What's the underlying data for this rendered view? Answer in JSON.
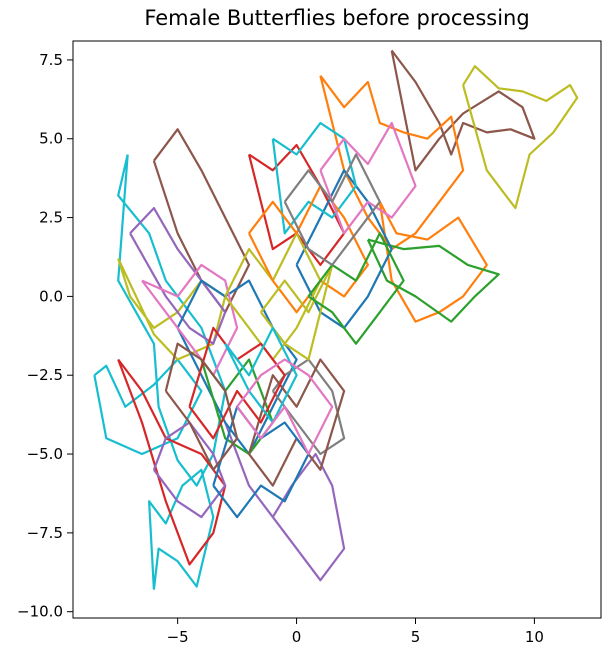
{
  "chart_data": {
    "type": "line",
    "title": "Female Butterflies before processing",
    "xlabel": "",
    "ylabel": "",
    "xlim": [
      -9.4,
      12.8
    ],
    "ylim": [
      -10.2,
      8.1
    ],
    "xticks": [
      -5,
      0,
      5,
      10
    ],
    "xtick_labels": [
      "−5",
      "0",
      "5",
      "10"
    ],
    "yticks": [
      7.5,
      5.0,
      2.5,
      0.0,
      -2.5,
      -5.0,
      -7.5,
      -10.0
    ],
    "ytick_labels": [
      "7.5",
      "5.0",
      "2.5",
      "0.0",
      "−2.5",
      "−5.0",
      "−7.5",
      "−10.0"
    ],
    "grid": false,
    "legend": "none",
    "palette": [
      "#1f77b4",
      "#ff7f0e",
      "#2ca02c",
      "#d62728",
      "#9467bd",
      "#8c564b",
      "#e377c2",
      "#7f7f7f",
      "#bcbd22",
      "#17becf"
    ],
    "series": [
      {
        "color": "#17becf",
        "x": [
          -7.1,
          -7.5,
          -6.2,
          -5.5,
          -4.0,
          -3.0,
          -3.5,
          -4.2,
          -5.0,
          -5.8,
          -6.0,
          -7.5,
          -7.1
        ],
        "y": [
          4.5,
          3.2,
          2.0,
          0.5,
          -1.0,
          -3.0,
          -5.0,
          -6.0,
          -5.2,
          -3.5,
          -1.5,
          0.5,
          4.5
        ]
      },
      {
        "color": "#17becf",
        "x": [
          -6.0,
          -5.8,
          -5.0,
          -4.2,
          -3.5,
          -4.0,
          -4.8,
          -5.5,
          -6.2,
          -6.0
        ],
        "y": [
          -9.3,
          -8.0,
          -8.4,
          -9.2,
          -7.0,
          -5.5,
          -6.0,
          -7.2,
          -6.5,
          -9.3
        ]
      },
      {
        "color": "#17becf",
        "x": [
          -8.5,
          -8.0,
          -6.5,
          -5.0,
          -4.0,
          -5.0,
          -6.0,
          -7.2,
          -8.0,
          -8.5
        ],
        "y": [
          -2.5,
          -4.5,
          -5.0,
          -4.5,
          -3.0,
          -2.0,
          -2.8,
          -3.5,
          -2.2,
          -2.5
        ]
      },
      {
        "color": "#8c564b",
        "x": [
          -6.0,
          -5.0,
          -4.0,
          -3.0,
          -2.0,
          -3.0,
          -4.0,
          -5.0,
          -6.0
        ],
        "y": [
          4.3,
          5.3,
          4.0,
          2.5,
          1.0,
          -0.5,
          0.5,
          2.0,
          4.3
        ]
      },
      {
        "color": "#8c564b",
        "x": [
          4.0,
          5.0,
          6.0,
          6.5,
          7.0,
          8.0,
          9.0,
          10.0,
          9.5,
          8.5,
          7.0,
          6.0,
          5.0,
          4.0
        ],
        "y": [
          7.8,
          6.8,
          5.5,
          4.5,
          5.5,
          5.2,
          5.3,
          5.0,
          6.0,
          6.5,
          5.8,
          5.0,
          4.0,
          7.8
        ]
      },
      {
        "color": "#bcbd22",
        "x": [
          7.0,
          7.5,
          8.5,
          9.5,
          10.5,
          11.5,
          11.8,
          10.8,
          9.8,
          9.2,
          8.0,
          7.0
        ],
        "y": [
          6.7,
          7.3,
          6.6,
          6.5,
          6.2,
          6.7,
          6.3,
          5.2,
          4.5,
          2.8,
          4.0,
          6.7
        ]
      },
      {
        "color": "#bcbd22",
        "x": [
          -7.5,
          -7.0,
          -6.0,
          -5.0,
          -4.0,
          -3.0,
          -3.5,
          -5.0,
          -6.0,
          -7.5
        ],
        "y": [
          1.2,
          0.0,
          -1.0,
          -0.5,
          0.5,
          0.0,
          -1.5,
          -2.0,
          -1.2,
          1.2
        ]
      },
      {
        "color": "#ff7f0e",
        "x": [
          1.0,
          2.0,
          3.0,
          3.5,
          4.5,
          5.5,
          6.5,
          7.0,
          6.0,
          5.0,
          4.0,
          3.0,
          2.0,
          1.0
        ],
        "y": [
          7.0,
          6.0,
          6.8,
          5.5,
          5.2,
          5.0,
          5.7,
          4.0,
          3.0,
          2.0,
          1.5,
          2.5,
          4.0,
          7.0
        ]
      },
      {
        "color": "#ff7f0e",
        "x": [
          3.5,
          4.2,
          5.5,
          6.8,
          8.0,
          7.0,
          6.0,
          5.0,
          4.0,
          3.5
        ],
        "y": [
          3.0,
          2.0,
          1.8,
          2.5,
          1.0,
          0.0,
          -0.5,
          -0.8,
          0.5,
          3.0
        ]
      },
      {
        "color": "#2ca02c",
        "x": [
          3.0,
          4.5,
          6.0,
          7.2,
          8.5,
          7.5,
          6.5,
          5.0,
          3.8,
          3.0
        ],
        "y": [
          1.8,
          1.5,
          1.6,
          1.0,
          0.7,
          0.0,
          -0.8,
          0.0,
          0.5,
          1.8
        ]
      },
      {
        "color": "#9467bd",
        "x": [
          -3.0,
          -2.0,
          -1.0,
          0.0,
          1.0,
          2.0,
          1.5,
          0.8,
          -0.2,
          -1.0,
          -2.0,
          -3.0
        ],
        "y": [
          -4.0,
          -6.0,
          -7.0,
          -8.0,
          -9.0,
          -8.0,
          -6.0,
          -5.0,
          -6.0,
          -7.0,
          -6.0,
          -4.0
        ]
      },
      {
        "color": "#9467bd",
        "x": [
          -7.0,
          -6.0,
          -5.0,
          -4.0,
          -3.0,
          -3.5,
          -4.5,
          -5.5,
          -7.0
        ],
        "y": [
          2.0,
          2.8,
          1.5,
          0.5,
          -0.5,
          -1.5,
          -1.0,
          0.0,
          2.0
        ]
      },
      {
        "color": "#d62728",
        "x": [
          -7.5,
          -6.5,
          -5.5,
          -4.0,
          -3.0,
          -3.5,
          -4.5,
          -5.5,
          -6.5,
          -7.5
        ],
        "y": [
          -2.0,
          -3.0,
          -4.5,
          -5.0,
          -6.0,
          -7.5,
          -8.5,
          -6.5,
          -4.0,
          -2.0
        ]
      },
      {
        "color": "#d62728",
        "x": [
          -2.0,
          -1.0,
          0.0,
          1.0,
          2.0,
          1.0,
          0.0,
          -1.0,
          -2.0
        ],
        "y": [
          4.5,
          4.0,
          4.8,
          3.5,
          2.0,
          1.0,
          2.0,
          1.5,
          4.5
        ]
      },
      {
        "color": "#1f77b4",
        "x": [
          -5.0,
          -4.0,
          -3.0,
          -2.0,
          -1.0,
          0.0,
          -1.0,
          -2.0,
          -3.0,
          -4.0,
          -5.0
        ],
        "y": [
          -1.0,
          -2.5,
          -4.0,
          -5.0,
          -3.5,
          -2.0,
          -1.0,
          0.5,
          0.0,
          0.5,
          -1.0
        ]
      },
      {
        "color": "#1f77b4",
        "x": [
          0.0,
          1.0,
          2.0,
          3.0,
          4.0,
          3.0,
          2.0,
          1.0,
          0.0
        ],
        "y": [
          1.0,
          2.5,
          4.0,
          3.0,
          1.5,
          0.0,
          -1.0,
          -0.5,
          1.0
        ]
      },
      {
        "color": "#e377c2",
        "x": [
          -6.5,
          -5.5,
          -4.5,
          -3.5,
          -2.5,
          -3.0,
          -4.0,
          -5.0,
          -6.5
        ],
        "y": [
          0.5,
          -0.5,
          -1.5,
          -2.5,
          -1.0,
          0.5,
          1.0,
          0.0,
          0.5
        ]
      },
      {
        "color": "#7f7f7f",
        "x": [
          -1.0,
          0.0,
          1.0,
          2.0,
          1.5,
          0.5,
          -0.5,
          -1.0
        ],
        "y": [
          -3.0,
          -4.0,
          -5.0,
          -4.5,
          -3.0,
          -2.0,
          -2.5,
          -3.0
        ]
      },
      {
        "color": "#bcbd22",
        "x": [
          -3.0,
          -2.0,
          -1.0,
          0.0,
          1.0,
          0.0,
          -1.0,
          -2.0,
          -3.0
        ],
        "y": [
          0.0,
          1.5,
          0.5,
          2.0,
          0.5,
          -1.0,
          -2.0,
          -1.0,
          0.0
        ]
      },
      {
        "color": "#17becf",
        "x": [
          -1.0,
          0.0,
          1.0,
          2.0,
          2.5,
          1.5,
          0.5,
          -0.5,
          -1.0
        ],
        "y": [
          5.0,
          4.5,
          5.5,
          5.0,
          3.5,
          2.5,
          3.0,
          2.0,
          5.0
        ]
      },
      {
        "color": "#2ca02c",
        "x": [
          -4.0,
          -3.0,
          -2.0,
          -1.0,
          -2.0,
          -3.0,
          -4.0
        ],
        "y": [
          -2.0,
          -3.0,
          -2.0,
          -4.0,
          -5.0,
          -4.5,
          -2.0
        ]
      },
      {
        "color": "#8c564b",
        "x": [
          -2.0,
          -1.0,
          0.0,
          1.0,
          2.0,
          1.0,
          0.0,
          -1.0,
          -2.0
        ],
        "y": [
          -5.0,
          -6.0,
          -4.5,
          -5.5,
          -3.0,
          -2.0,
          -3.5,
          -2.5,
          -5.0
        ]
      },
      {
        "color": "#ff7f0e",
        "x": [
          -2.0,
          -1.0,
          0.0,
          1.0,
          2.0,
          3.0,
          2.0,
          1.0,
          0.0,
          -1.0,
          -2.0
        ],
        "y": [
          2.0,
          3.0,
          2.0,
          3.5,
          2.5,
          1.0,
          0.0,
          0.5,
          -0.5,
          0.5,
          2.0
        ]
      },
      {
        "color": "#9467bd",
        "x": [
          -6.0,
          -5.0,
          -4.0,
          -3.0,
          -3.5,
          -4.5,
          -5.5,
          -6.0
        ],
        "y": [
          -5.5,
          -6.5,
          -7.0,
          -6.0,
          -5.0,
          -4.0,
          -4.5,
          -5.5
        ]
      },
      {
        "color": "#e377c2",
        "x": [
          1.0,
          2.0,
          3.0,
          4.0,
          5.0,
          4.0,
          3.0,
          2.0,
          1.0
        ],
        "y": [
          4.0,
          5.0,
          4.2,
          5.5,
          3.5,
          2.5,
          3.0,
          2.0,
          4.0
        ]
      },
      {
        "color": "#d62728",
        "x": [
          -4.5,
          -3.5,
          -2.5,
          -1.5,
          -0.5,
          -1.5,
          -2.5,
          -3.5,
          -4.5
        ],
        "y": [
          -3.5,
          -4.5,
          -3.0,
          -4.0,
          -2.5,
          -1.5,
          -2.0,
          -1.0,
          -3.5
        ]
      },
      {
        "color": "#1f77b4",
        "x": [
          -3.5,
          -2.5,
          -1.5,
          -0.5,
          0.5,
          -0.5,
          -1.5,
          -2.5,
          -3.5
        ],
        "y": [
          -6.0,
          -7.0,
          -6.0,
          -6.5,
          -5.0,
          -4.0,
          -4.5,
          -3.5,
          -6.0
        ]
      },
      {
        "color": "#bcbd22",
        "x": [
          -1.5,
          -0.5,
          0.5,
          1.5,
          0.5,
          -0.5,
          -1.5
        ],
        "y": [
          -0.5,
          0.5,
          -0.5,
          1.0,
          -2.0,
          -1.5,
          -0.5
        ]
      },
      {
        "color": "#8c564b",
        "x": [
          -5.5,
          -4.5,
          -3.5,
          -2.5,
          -3.0,
          -4.0,
          -5.0,
          -5.5
        ],
        "y": [
          -3.0,
          -4.0,
          -5.5,
          -4.5,
          -3.0,
          -2.0,
          -1.5,
          -3.0
        ]
      },
      {
        "color": "#2ca02c",
        "x": [
          0.5,
          1.5,
          2.5,
          3.5,
          4.5,
          3.5,
          2.5,
          1.5,
          0.5
        ],
        "y": [
          0.0,
          1.0,
          0.5,
          2.0,
          0.5,
          -0.5,
          -1.5,
          -0.5,
          0.0
        ]
      },
      {
        "color": "#7f7f7f",
        "x": [
          -0.5,
          0.5,
          1.5,
          2.5,
          3.5,
          2.5,
          1.5,
          0.5,
          -0.5
        ],
        "y": [
          3.0,
          4.0,
          3.0,
          4.5,
          3.0,
          2.0,
          1.0,
          1.5,
          3.0
        ]
      },
      {
        "color": "#17becf",
        "x": [
          -3.0,
          -2.0,
          -1.0,
          0.0,
          -1.0,
          -2.0,
          -3.0
        ],
        "y": [
          -1.5,
          -2.5,
          -1.0,
          -2.5,
          -4.0,
          -3.0,
          -1.5
        ]
      },
      {
        "color": "#e377c2",
        "x": [
          -2.5,
          -1.5,
          -0.5,
          0.5,
          1.5,
          0.5,
          -0.5,
          -1.5,
          -2.5
        ],
        "y": [
          -3.5,
          -4.5,
          -3.5,
          -5.0,
          -3.5,
          -2.5,
          -2.0,
          -2.5,
          -3.5
        ]
      }
    ]
  }
}
